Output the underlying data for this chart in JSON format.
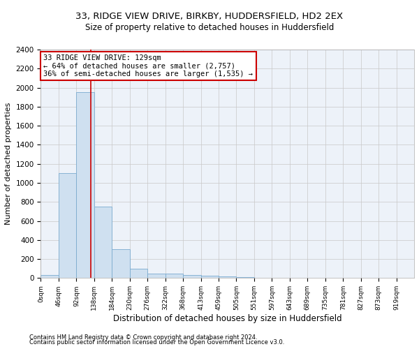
{
  "title1": "33, RIDGE VIEW DRIVE, BIRKBY, HUDDERSFIELD, HD2 2EX",
  "title2": "Size of property relative to detached houses in Huddersfield",
  "xlabel": "Distribution of detached houses by size in Huddersfield",
  "ylabel": "Number of detached properties",
  "footnote1": "Contains HM Land Registry data © Crown copyright and database right 2024.",
  "footnote2": "Contains public sector information licensed under the Open Government Licence v3.0.",
  "bin_labels": [
    "0sqm",
    "46sqm",
    "92sqm",
    "138sqm",
    "184sqm",
    "230sqm",
    "276sqm",
    "322sqm",
    "368sqm",
    "413sqm",
    "459sqm",
    "505sqm",
    "551sqm",
    "597sqm",
    "643sqm",
    "689sqm",
    "735sqm",
    "781sqm",
    "827sqm",
    "873sqm",
    "919sqm"
  ],
  "bar_values": [
    30,
    1100,
    1950,
    750,
    300,
    100,
    50,
    50,
    30,
    25,
    20,
    10,
    5,
    5,
    5,
    3,
    3,
    2,
    2,
    2,
    2
  ],
  "bar_color": "#cfe0f0",
  "bar_edge_color": "#7aabcf",
  "grid_color": "#c8c8c8",
  "red_line_color": "#cc0000",
  "annotation_box_color": "#cc0000",
  "property_sqm": 129,
  "bin_width": 46,
  "annotation_line1": "33 RIDGE VIEW DRIVE: 129sqm",
  "annotation_line2": "← 64% of detached houses are smaller (2,757)",
  "annotation_line3": "36% of semi-detached houses are larger (1,535) →",
  "ylim": [
    0,
    2400
  ],
  "yticks": [
    0,
    200,
    400,
    600,
    800,
    1000,
    1200,
    1400,
    1600,
    1800,
    2000,
    2200,
    2400
  ],
  "background_color": "#edf2f9",
  "title1_fontsize": 9.5,
  "title2_fontsize": 8.5,
  "xlabel_fontsize": 8.5,
  "ylabel_fontsize": 8,
  "annotation_fontsize": 7.5
}
